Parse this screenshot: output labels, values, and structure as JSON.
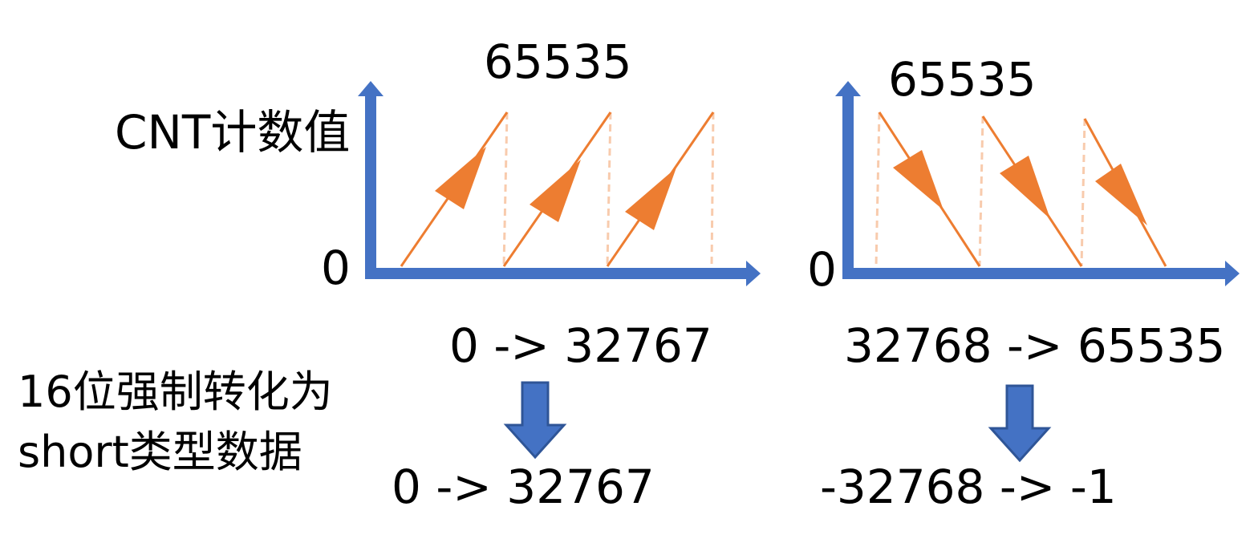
{
  "labels": {
    "left_top_value": "65535",
    "right_top_value": "65535",
    "y_axis_label": "CNT计数值",
    "left_zero": "0",
    "right_zero": "0",
    "left_range": "0 -> 32767",
    "right_range": "32768 -> 65535",
    "cast_line1": "16位强制转化为",
    "cast_line2": "short类型数据",
    "left_result": "0 -> 32767",
    "right_result": "-32768 -> -1"
  },
  "colors": {
    "axis": "#4472C4",
    "ramp": "#ED7D31",
    "dashed": "#F8CBAD",
    "down_arrow_fill": "#4472C4",
    "down_arrow_stroke": "#2F5597"
  },
  "icons": {
    "axis_arrow": "triangle-arrowhead",
    "cast_arrow": "down-block-arrow"
  }
}
